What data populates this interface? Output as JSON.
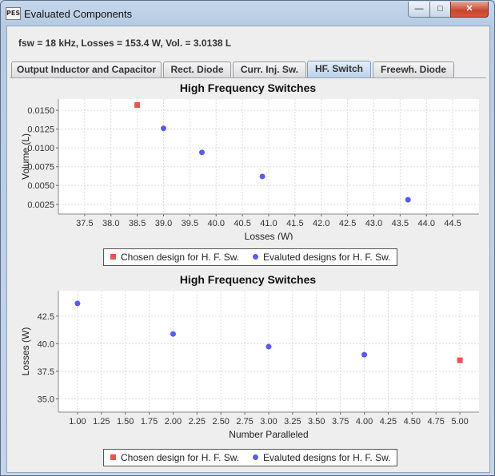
{
  "window": {
    "app_icon": "PES",
    "title": "Evaluated Components",
    "minimize": "—",
    "maximize": "□",
    "close": "✕"
  },
  "summary": "fsw = 18 kHz, Losses = 153.4 W, Vol. = 3.0138 L",
  "tabs": [
    {
      "label": "Output Inductor and Capacitor"
    },
    {
      "label": "Rect. Diode"
    },
    {
      "label": "Curr. Inj. Sw."
    },
    {
      "label": "HF. Switch"
    },
    {
      "label": "Freewh. Diode"
    }
  ],
  "legend": {
    "chosen": "Chosen design for H. F. Sw.",
    "evaluated": "Evaluted designs for H. F. Sw."
  },
  "colors": {
    "chosen": "#f05050",
    "evaluated": "#5b5bf0"
  },
  "chart_data": [
    {
      "type": "scatter",
      "title": "High Frequency Switches",
      "xlabel": "Losses (W)",
      "ylabel": "Volume (L)",
      "xlim": [
        37.0,
        45.0
      ],
      "ylim": [
        0.0012,
        0.0165
      ],
      "xticks": [
        "37.5",
        "38.0",
        "38.5",
        "39.0",
        "39.5",
        "40.0",
        "40.5",
        "41.0",
        "41.5",
        "42.0",
        "42.5",
        "43.0",
        "43.5",
        "44.0",
        "44.5"
      ],
      "yticks": [
        "0.0025",
        "0.0050",
        "0.0075",
        "0.0100",
        "0.0125",
        "0.0150"
      ],
      "series": [
        {
          "name": "Chosen design for H. F. Sw.",
          "marker": "square",
          "points": [
            [
              38.5,
              0.0157
            ]
          ]
        },
        {
          "name": "Evaluted designs for H. F. Sw.",
          "marker": "circle",
          "points": [
            [
              39.0,
              0.0126
            ],
            [
              39.73,
              0.0094
            ],
            [
              40.88,
              0.0062
            ],
            [
              43.65,
              0.0031
            ]
          ]
        }
      ]
    },
    {
      "type": "scatter",
      "title": "High Frequency Switches",
      "xlabel": "Number Paralleled",
      "ylabel": "Losses (W)",
      "xlim": [
        0.8,
        5.2
      ],
      "ylim": [
        33.8,
        44.8
      ],
      "xticks": [
        "1.00",
        "1.25",
        "1.50",
        "1.75",
        "2.00",
        "2.25",
        "2.50",
        "2.75",
        "3.00",
        "3.25",
        "3.50",
        "3.75",
        "4.00",
        "4.25",
        "4.50",
        "4.75",
        "5.00"
      ],
      "yticks": [
        "35.0",
        "37.5",
        "40.0",
        "42.5"
      ],
      "series": [
        {
          "name": "Chosen design for H. F. Sw.",
          "marker": "square",
          "points": [
            [
              5.0,
              38.5
            ]
          ]
        },
        {
          "name": "Evaluted designs for H. F. Sw.",
          "marker": "circle",
          "points": [
            [
              1.0,
              43.65
            ],
            [
              2.0,
              40.88
            ],
            [
              3.0,
              39.73
            ],
            [
              4.0,
              39.0
            ]
          ]
        }
      ]
    }
  ]
}
